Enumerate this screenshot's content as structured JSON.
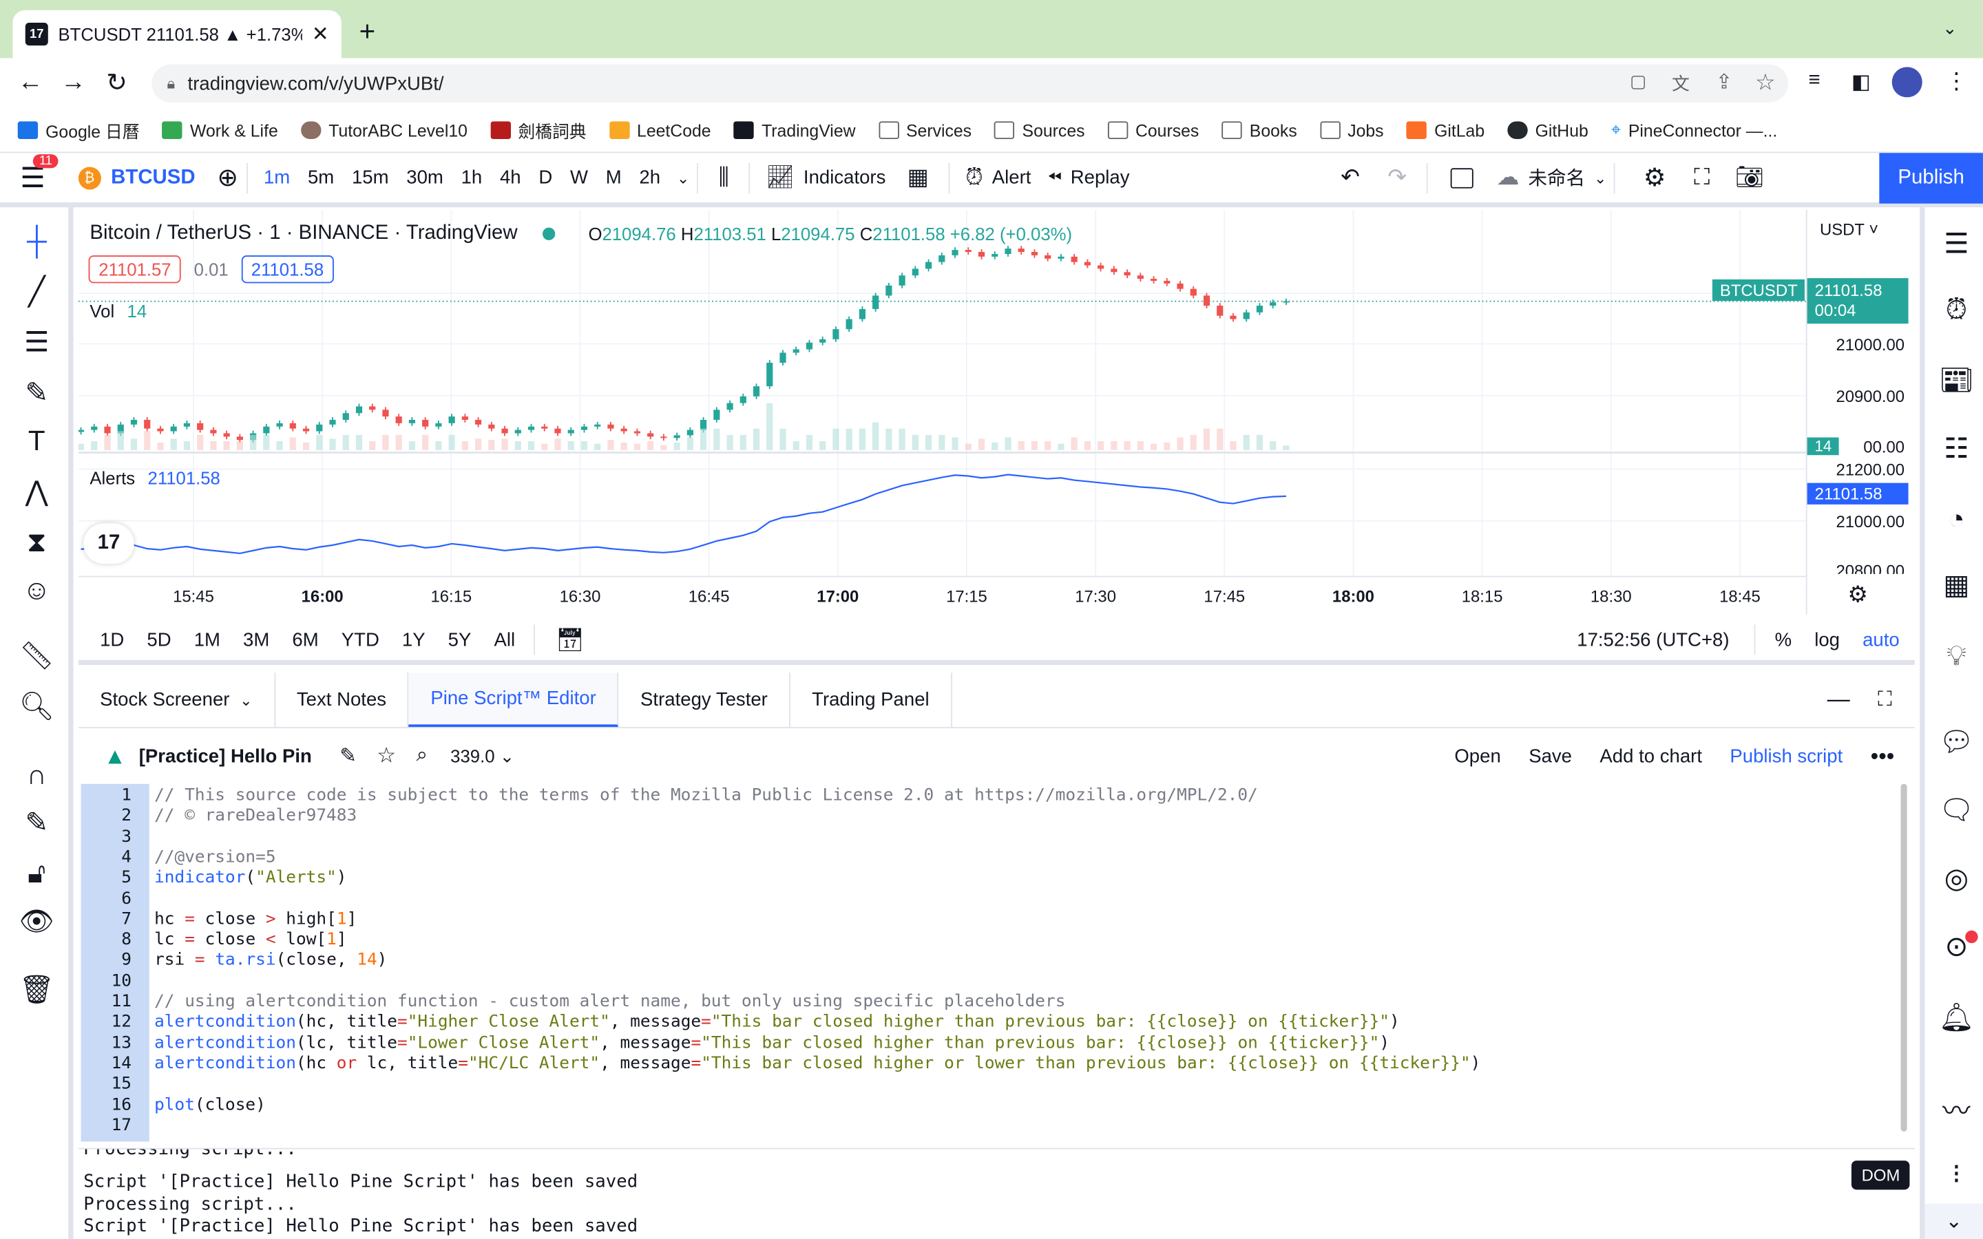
{
  "browser": {
    "tab_title": "BTCUSDT 21101.58 ▲ +1.73%",
    "url": "tradingview.com/v/yUWPxUBt/",
    "bookmarks": [
      "Google 日曆",
      "Work & Life",
      "TutorABC Level10",
      "劍橋詞典",
      "LeetCode",
      "TradingView",
      "Services",
      "Sources",
      "Courses",
      "Books",
      "Jobs",
      "GitLab",
      "GitHub",
      "PineConnector —..."
    ]
  },
  "header": {
    "notif_count": "11",
    "symbol": "BTCUSDT",
    "intervals": [
      "1m",
      "5m",
      "15m",
      "30m",
      "1h",
      "4h",
      "D",
      "W",
      "M",
      "2h"
    ],
    "active_interval": "1m",
    "indicators": "Indicators",
    "alert": "Alert",
    "replay": "Replay",
    "layout_name": "未命名",
    "publish": "Publish"
  },
  "legend": {
    "title": "Bitcoin / TetherUS · 1 · BINANCE · TradingView",
    "o_label": "O",
    "o": "21094.76",
    "h_label": "H",
    "h": "21103.51",
    "l_label": "L",
    "l": "21094.75",
    "c_label": "C",
    "c": "21101.58",
    "change": "+6.82 (+0.03%)",
    "bid": "21101.57",
    "spread": "0.01",
    "ask": "21101.58",
    "vol_label": "Vol",
    "vol": "14",
    "alerts_label": "Alerts",
    "alerts_value": "21101.58"
  },
  "price_scale": {
    "currency": "USDT",
    "labels": [
      "21000.00",
      "20900.00",
      "00.00",
      "21200.00",
      "21000.00",
      "20800.00"
    ],
    "current_price": "21101.58",
    "countdown": "00:04",
    "symbol_tag": "BTCUSDT",
    "vol_tag": "14",
    "alerts_tag": "21101.58"
  },
  "time_axis": [
    "15:45",
    "16:00",
    "16:15",
    "16:30",
    "16:45",
    "17:00",
    "17:15",
    "17:30",
    "17:45",
    "18:00",
    "18:15",
    "18:30",
    "18:45"
  ],
  "range_bar": {
    "ranges": [
      "1D",
      "5D",
      "1M",
      "3M",
      "6M",
      "YTD",
      "1Y",
      "5Y",
      "All"
    ],
    "clock": "17:52:56 (UTC+8)",
    "percent": "%",
    "log": "log",
    "auto": "auto"
  },
  "panel_tabs": [
    "Stock Screener",
    "Text Notes",
    "Pine Script™ Editor",
    "Strategy Tester",
    "Trading Panel"
  ],
  "editor": {
    "script_name": "[Practice] Hello Pin",
    "version": "339.0",
    "open": "Open",
    "save": "Save",
    "add_to_chart": "Add to chart",
    "publish_script": "Publish script",
    "line_numbers": [
      "1",
      "2",
      "3",
      "4",
      "5",
      "6",
      "7",
      "8",
      "9",
      "10",
      "11",
      "12",
      "13",
      "14",
      "15",
      "16",
      "17"
    ],
    "code_lines": [
      "// This source code is subject to the terms of the Mozilla Public License 2.0 at https://mozilla.org/MPL/2.0/",
      "// © rareDealer97483",
      "",
      "//@version=5",
      "indicator(\"Alerts\")",
      "",
      "hc = close > high[1]",
      "lc = close < low[1]",
      "rsi = ta.rsi(close, 14)",
      "",
      "// using alertcondition function - custom alert name, but only using specific placeholders",
      "alertcondition(hc, title=\"Higher Close Alert\", message=\"This bar closed higher than previous bar: {{close}} on {{ticker}}\")",
      "alertcondition(lc, title=\"Lower Close Alert\", message=\"This bar closed higher than previous bar: {{close}} on {{ticker}}\")",
      "alertcondition(hc or lc, title=\"HC/LC Alert\", message=\"This bar closed higher or lower than previous bar: {{close}} on {{ticker}}\")",
      "",
      "plot(close)",
      ""
    ]
  },
  "console": [
    "Processing script...",
    "Script '[Practice] Hello Pine Script' has been saved",
    "Processing script...",
    "Script '[Practice] Hello Pine Script' has been saved"
  ],
  "dom_tooltip": "DOM",
  "colors": {
    "accent": "#2962ff",
    "up": "#26a69a",
    "down": "#ef5350",
    "line": "#2962ff"
  },
  "chart_data": {
    "type": "candlestick",
    "close_series": [
      20910,
      20915,
      20905,
      20918,
      20925,
      20912,
      20908,
      20915,
      20920,
      20910,
      20905,
      20900,
      20895,
      20905,
      20915,
      20920,
      20912,
      20908,
      20918,
      20925,
      20935,
      20945,
      20940,
      20930,
      20920,
      20925,
      20915,
      20920,
      20930,
      20925,
      20918,
      20912,
      20905,
      20910,
      20915,
      20912,
      20905,
      20910,
      20915,
      20918,
      20912,
      20908,
      20905,
      20900,
      20898,
      20902,
      20910,
      20925,
      20940,
      20950,
      20960,
      20975,
      21010,
      21025,
      21030,
      21040,
      21045,
      21060,
      21075,
      21090,
      21110,
      21125,
      21140,
      21150,
      21160,
      21170,
      21178,
      21175,
      21168,
      21172,
      21180,
      21175,
      21170,
      21165,
      21168,
      21160,
      21155,
      21150,
      21145,
      21140,
      21135,
      21132,
      21128,
      21120,
      21110,
      21095,
      21080,
      21075,
      21085,
      21095,
      21100,
      21101.58
    ]
  }
}
